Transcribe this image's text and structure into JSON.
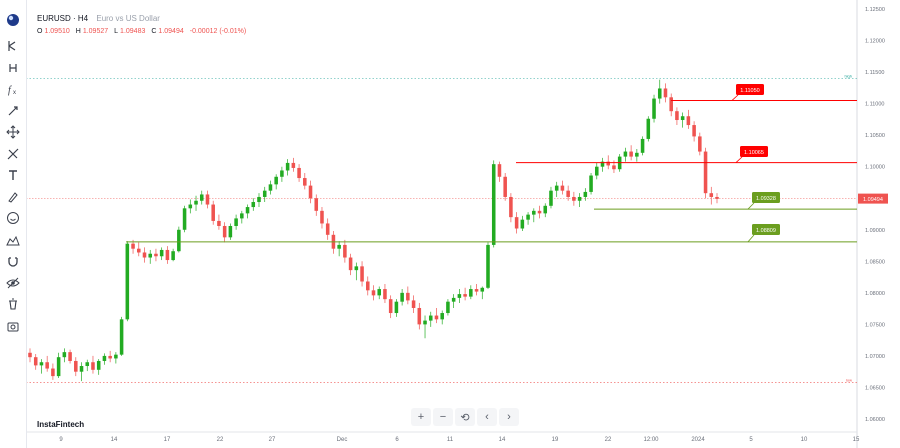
{
  "header": {
    "symbol": "EURUSD · H4",
    "description": "Euro vs US Dollar",
    "ohlc": [
      {
        "key": "O",
        "value": "1.09510"
      },
      {
        "key": "H",
        "value": "1.09527"
      },
      {
        "key": "L",
        "value": "1.09483"
      },
      {
        "key": "C",
        "value": "1.09494"
      },
      {
        "key": "",
        "value": "-0.00012 (-0.01%)"
      }
    ]
  },
  "sidebar": {
    "icons": [
      "cursor-icon",
      "crosshair-icon",
      "fib-icon",
      "text-f-icon",
      "move-icon",
      "pattern-icon",
      "text-icon",
      "brush-icon",
      "emoji-icon",
      "measure-icon",
      "magnet-icon",
      "eye-icon",
      "trash-icon",
      "camera-icon"
    ]
  },
  "brand": "InstaFintech",
  "zoom_controls": [
    "+",
    "−",
    "⟲",
    "‹",
    "›"
  ],
  "colors": {
    "up": "#26a69a",
    "up_fill": "#22ab22",
    "down": "#ef5350",
    "resistance": "#ff0000",
    "support": "#6b9e1f",
    "current_price": "#ef5350"
  },
  "chart_data": {
    "type": "candlestick",
    "ylim": [
      1.06,
      1.125
    ],
    "y_ticks": [
      "1.12500",
      "1.12000",
      "1.11500",
      "1.11000",
      "1.10500",
      "1.10000",
      "1.09500",
      "1.09000",
      "1.08500",
      "1.08000",
      "1.07500",
      "1.07000",
      "1.06500",
      "1.06000"
    ],
    "x_ticks": [
      "9",
      "14",
      "17",
      "22",
      "27",
      "Dec",
      "6",
      "11",
      "14",
      "19",
      "22",
      "12:00",
      "2024",
      "5",
      "10",
      "15"
    ],
    "current_price": "1.09494",
    "levels": [
      {
        "kind": "resistance",
        "label": "1.11050",
        "value": 1.1105
      },
      {
        "kind": "resistance",
        "label": "1.10065",
        "value": 1.10065
      },
      {
        "kind": "support",
        "label": "1.09328",
        "value": 1.09328
      },
      {
        "kind": "support",
        "label": "1.08809",
        "value": 1.08809
      }
    ],
    "top_dotted": {
      "label": "high",
      "value": 1.114
    },
    "bottom_dotted": {
      "label": "low",
      "value": 1.0658
    },
    "candles": [
      [
        1.0705,
        1.0712,
        1.069,
        1.0698
      ],
      [
        1.0698,
        1.0703,
        1.0678,
        1.0685
      ],
      [
        1.0685,
        1.0695,
        1.0672,
        1.069
      ],
      [
        1.069,
        1.07,
        1.0675,
        1.068
      ],
      [
        1.068,
        1.0688,
        1.0662,
        1.0668
      ],
      [
        1.0668,
        1.0705,
        1.0665,
        1.0698
      ],
      [
        1.0698,
        1.0712,
        1.069,
        1.0706
      ],
      [
        1.0706,
        1.071,
        1.0688,
        1.0692
      ],
      [
        1.0692,
        1.0698,
        1.0668,
        1.0675
      ],
      [
        1.0675,
        1.069,
        1.066,
        1.0684
      ],
      [
        1.0684,
        1.0694,
        1.0676,
        1.069
      ],
      [
        1.069,
        1.07,
        1.0672,
        1.0678
      ],
      [
        1.0678,
        1.0695,
        1.067,
        1.0692
      ],
      [
        1.0692,
        1.0704,
        1.0686,
        1.07
      ],
      [
        1.07,
        1.0708,
        1.069,
        1.0696
      ],
      [
        1.0696,
        1.0706,
        1.0688,
        1.0702
      ],
      [
        1.0702,
        1.0762,
        1.07,
        1.0758
      ],
      [
        1.0758,
        1.0882,
        1.0755,
        1.0878
      ],
      [
        1.0878,
        1.0884,
        1.0862,
        1.087
      ],
      [
        1.087,
        1.088,
        1.0858,
        1.0864
      ],
      [
        1.0864,
        1.0872,
        1.0848,
        1.0856
      ],
      [
        1.0856,
        1.0868,
        1.0846,
        1.0862
      ],
      [
        1.0862,
        1.087,
        1.085,
        1.0858
      ],
      [
        1.0858,
        1.0872,
        1.0852,
        1.0868
      ],
      [
        1.0868,
        1.0874,
        1.0846,
        1.0852
      ],
      [
        1.0852,
        1.087,
        1.085,
        1.0866
      ],
      [
        1.0866,
        1.0905,
        1.0864,
        1.09
      ],
      [
        1.09,
        1.0938,
        1.0896,
        1.0934
      ],
      [
        1.0934,
        1.0948,
        1.0926,
        1.094
      ],
      [
        1.094,
        1.0954,
        1.093,
        1.0946
      ],
      [
        1.0946,
        1.0962,
        1.094,
        1.0956
      ],
      [
        1.0956,
        1.0962,
        1.0934,
        1.094
      ],
      [
        1.094,
        1.0946,
        1.0908,
        1.0914
      ],
      [
        1.0914,
        1.0924,
        1.09,
        1.0906
      ],
      [
        1.0906,
        1.0912,
        1.088,
        1.0888
      ],
      [
        1.0888,
        1.091,
        1.0884,
        1.0906
      ],
      [
        1.0906,
        1.0924,
        1.09,
        1.0918
      ],
      [
        1.0918,
        1.093,
        1.091,
        1.0926
      ],
      [
        1.0926,
        1.094,
        1.0918,
        1.0936
      ],
      [
        1.0936,
        1.095,
        1.093,
        1.0944
      ],
      [
        1.0944,
        1.0958,
        1.0936,
        1.0952
      ],
      [
        1.0952,
        1.0968,
        1.0944,
        1.0962
      ],
      [
        1.0962,
        1.0978,
        1.0956,
        1.0972
      ],
      [
        1.0972,
        1.0988,
        1.0964,
        1.0984
      ],
      [
        1.0984,
        1.1,
        1.0976,
        1.0994
      ],
      [
        1.0994,
        1.1012,
        1.0986,
        1.1006
      ],
      [
        1.1006,
        1.1014,
        1.0992,
        1.0998
      ],
      [
        1.0998,
        1.1004,
        1.0976,
        1.0982
      ],
      [
        1.0982,
        1.099,
        1.0964,
        1.097
      ],
      [
        1.097,
        1.0978,
        1.0942,
        1.095
      ],
      [
        1.095,
        1.0956,
        1.0922,
        1.093
      ],
      [
        1.093,
        1.0936,
        1.0902,
        1.091
      ],
      [
        1.091,
        1.0918,
        1.0884,
        1.0892
      ],
      [
        1.0892,
        1.0898,
        1.0862,
        1.087
      ],
      [
        1.087,
        1.0882,
        1.0858,
        1.0876
      ],
      [
        1.0876,
        1.0884,
        1.0848,
        1.0856
      ],
      [
        1.0856,
        1.0862,
        1.0828,
        1.0836
      ],
      [
        1.0836,
        1.0848,
        1.082,
        1.0842
      ],
      [
        1.0842,
        1.085,
        1.081,
        1.0818
      ],
      [
        1.0818,
        1.0826,
        1.0796,
        1.0804
      ],
      [
        1.0804,
        1.0812,
        1.0788,
        1.0796
      ],
      [
        1.0796,
        1.081,
        1.079,
        1.0806
      ],
      [
        1.0806,
        1.0814,
        1.0784,
        1.079
      ],
      [
        1.079,
        1.0796,
        1.076,
        1.0768
      ],
      [
        1.0768,
        1.079,
        1.0762,
        1.0786
      ],
      [
        1.0786,
        1.0806,
        1.078,
        1.08
      ],
      [
        1.08,
        1.081,
        1.0782,
        1.0788
      ],
      [
        1.0788,
        1.0796,
        1.0768,
        1.0776
      ],
      [
        1.0776,
        1.0784,
        1.0742,
        1.075
      ],
      [
        1.075,
        1.0764,
        1.0728,
        1.0756
      ],
      [
        1.0756,
        1.077,
        1.0746,
        1.0764
      ],
      [
        1.0764,
        1.0776,
        1.0752,
        1.0758
      ],
      [
        1.0758,
        1.0772,
        1.075,
        1.0768
      ],
      [
        1.0768,
        1.079,
        1.0764,
        1.0786
      ],
      [
        1.0786,
        1.0798,
        1.0776,
        1.0792
      ],
      [
        1.0792,
        1.0806,
        1.0784,
        1.0798
      ],
      [
        1.0798,
        1.0808,
        1.0788,
        1.0794
      ],
      [
        1.0794,
        1.0812,
        1.079,
        1.0806
      ],
      [
        1.0806,
        1.0814,
        1.0796,
        1.0802
      ],
      [
        1.0802,
        1.081,
        1.079,
        1.0808
      ],
      [
        1.0808,
        1.088,
        1.0806,
        1.0876
      ],
      [
        1.0876,
        1.101,
        1.0872,
        1.1004
      ],
      [
        1.1004,
        1.1008,
        1.0976,
        1.0984
      ],
      [
        1.0984,
        1.099,
        1.0946,
        1.0952
      ],
      [
        1.0952,
        1.0958,
        1.0912,
        1.092
      ],
      [
        1.092,
        1.0928,
        1.0894,
        1.0902
      ],
      [
        1.0902,
        1.0922,
        1.0898,
        1.0916
      ],
      [
        1.0916,
        1.0928,
        1.0908,
        1.0924
      ],
      [
        1.0924,
        1.0934,
        1.0912,
        1.093
      ],
      [
        1.093,
        1.0938,
        1.0918,
        1.0926
      ],
      [
        1.0926,
        1.0942,
        1.092,
        1.0938
      ],
      [
        1.0938,
        1.0968,
        1.0934,
        1.0962
      ],
      [
        1.0962,
        1.0976,
        1.0952,
        1.097
      ],
      [
        1.097,
        1.0978,
        1.0956,
        1.0962
      ],
      [
        1.0962,
        1.097,
        1.0946,
        1.0952
      ],
      [
        1.0952,
        1.096,
        1.0938,
        1.0946
      ],
      [
        1.0946,
        1.0958,
        1.0936,
        1.0952
      ],
      [
        1.0952,
        1.0966,
        1.0946,
        1.096
      ],
      [
        1.096,
        1.099,
        1.0956,
        1.0986
      ],
      [
        1.0986,
        1.1006,
        1.098,
        1.1
      ],
      [
        1.1,
        1.1014,
        1.0992,
        1.1008
      ],
      [
        1.1008,
        1.1018,
        1.0996,
        1.1002
      ],
      [
        1.1002,
        1.101,
        1.099,
        1.0996
      ],
      [
        1.0996,
        1.102,
        1.0992,
        1.1016
      ],
      [
        1.1016,
        1.103,
        1.1008,
        1.1024
      ],
      [
        1.1024,
        1.1034,
        1.101,
        1.1016
      ],
      [
        1.1016,
        1.1028,
        1.1008,
        1.1022
      ],
      [
        1.1022,
        1.1048,
        1.1018,
        1.1044
      ],
      [
        1.1044,
        1.108,
        1.104,
        1.1076
      ],
      [
        1.1076,
        1.1114,
        1.107,
        1.1108
      ],
      [
        1.1108,
        1.1138,
        1.11,
        1.1124
      ],
      [
        1.1124,
        1.1132,
        1.1102,
        1.111
      ],
      [
        1.111,
        1.1116,
        1.108,
        1.1088
      ],
      [
        1.1088,
        1.1094,
        1.1066,
        1.1074
      ],
      [
        1.1074,
        1.1086,
        1.1062,
        1.108
      ],
      [
        1.108,
        1.109,
        1.106,
        1.1066
      ],
      [
        1.1066,
        1.1072,
        1.104,
        1.1048
      ],
      [
        1.1048,
        1.1054,
        1.1018,
        1.1024
      ],
      [
        1.1024,
        1.103,
        1.095,
        1.0958
      ],
      [
        1.0958,
        1.0968,
        1.094,
        1.0952
      ],
      [
        1.0952,
        1.0958,
        1.0942,
        1.0949
      ]
    ]
  }
}
